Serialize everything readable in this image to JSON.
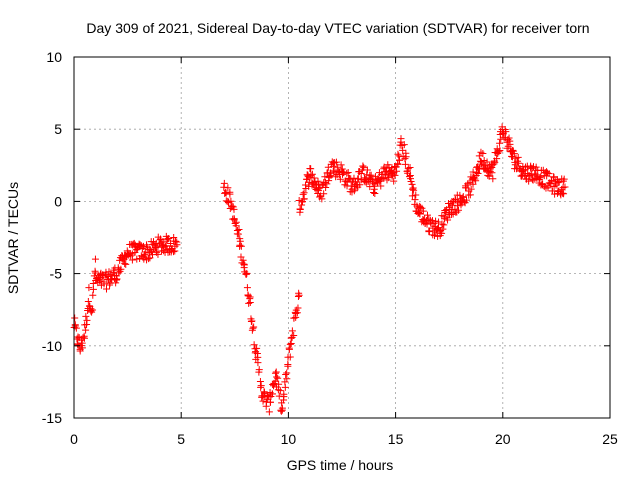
{
  "chart_data": {
    "type": "scatter",
    "title": "Day 309 of 2021, Sidereal Day-to-day VTEC variation (SDTVAR) for receiver torn",
    "xlabel": "GPS time / hours",
    "ylabel": "SDTVAR / TECUs",
    "xlim": [
      0,
      25
    ],
    "ylim": [
      -15,
      10
    ],
    "xticks": [
      0,
      5,
      10,
      15,
      20,
      25
    ],
    "yticks": [
      -15,
      -10,
      -5,
      0,
      5,
      10
    ],
    "grid": true,
    "marker": "+",
    "color": "#ff0000",
    "series": [
      {
        "name": "SDTVAR",
        "segments": [
          {
            "x": [
              0.0,
              0.15,
              0.3,
              0.5,
              0.7,
              0.85,
              1.0
            ],
            "y": [
              -8.5,
              -9.5,
              -10.2,
              -9.0,
              -6.5,
              -7.5,
              -4.0
            ]
          },
          {
            "x": [
              1.0,
              1.5,
              2.0,
              2.5,
              3.0,
              3.5,
              4.0,
              4.5,
              4.8
            ],
            "y": [
              -5.5,
              -5.5,
              -5.0,
              -3.5,
              -3.5,
              -3.5,
              -3.0,
              -3.0,
              -3.0
            ]
          },
          {
            "x": [
              7.0,
              7.3,
              7.6,
              7.9,
              8.2,
              8.5,
              8.8,
              9.1,
              9.4,
              9.7,
              10.0,
              10.3,
              10.5
            ],
            "y": [
              1.0,
              0.0,
              -2.0,
              -4.0,
              -7.0,
              -10.5,
              -13.5,
              -14.0,
              -12.0,
              -14.5,
              -11.0,
              -8.0,
              -6.5
            ]
          },
          {
            "x": [
              10.5,
              11.0,
              11.5,
              12.0,
              12.5,
              13.0,
              13.5,
              14.0,
              14.5,
              15.0,
              15.3,
              15.7,
              16.0,
              16.5,
              17.0,
              17.5,
              18.0,
              18.5,
              19.0,
              19.5,
              20.0,
              20.5,
              21.0,
              21.5,
              22.0,
              22.5,
              22.9
            ],
            "y": [
              -0.5,
              2.0,
              0.5,
              2.5,
              2.0,
              1.0,
              2.0,
              1.0,
              2.0,
              2.0,
              4.0,
              1.5,
              -0.5,
              -1.5,
              -2.0,
              -0.5,
              0.0,
              1.0,
              3.0,
              2.0,
              5.0,
              3.0,
              2.0,
              2.0,
              1.5,
              1.0,
              1.0
            ]
          }
        ]
      }
    ]
  }
}
